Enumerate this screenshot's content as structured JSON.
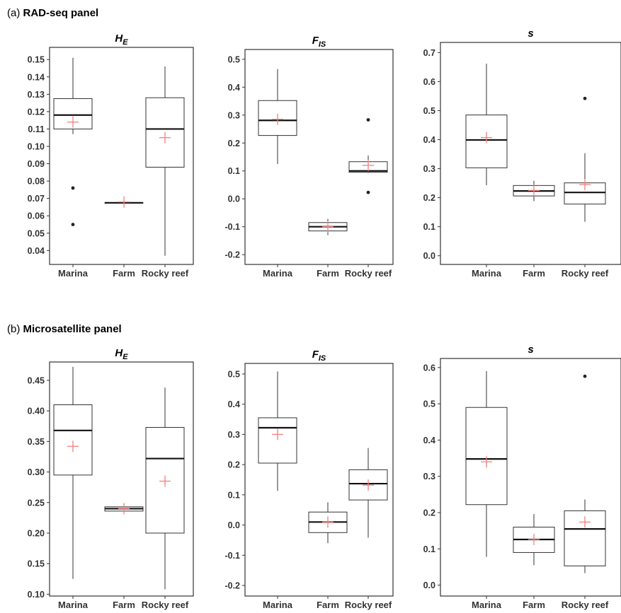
{
  "panels": [
    {
      "letter": "(a)",
      "title": "RAD-seq panel"
    },
    {
      "letter": "(b)",
      "title": "Microsatellite panel"
    }
  ],
  "colors": {
    "mean_marker": "#f08080",
    "box": "#333333",
    "median": "#111111",
    "outlier": "#222222"
  },
  "chart_data": [
    {
      "type": "boxplot",
      "panel": "a",
      "title_main": "H",
      "title_sub": "E",
      "categories": [
        "Marina",
        "Farm",
        "Rocky reef"
      ],
      "ylim": [
        0.032,
        0.157
      ],
      "yticks": [
        0.04,
        0.05,
        0.06,
        0.07,
        0.08,
        0.09,
        0.1,
        0.11,
        0.12,
        0.13,
        0.14,
        0.15
      ],
      "ytick_labels": [
        "0.04",
        "0.05",
        "0.06",
        "0.07",
        "0.08",
        "0.09",
        "0.10",
        "0.11",
        "0.12",
        "0.13",
        "0.14",
        "0.15"
      ],
      "boxes": [
        {
          "category": "Marina",
          "whisker_low": 0.107,
          "q1": 0.11,
          "median": 0.118,
          "q3": 0.1275,
          "whisker_high": 0.151,
          "mean": 0.114,
          "outliers": [
            0.076,
            0.055
          ]
        },
        {
          "category": "Farm",
          "whisker_low": 0.0675,
          "q1": 0.0675,
          "median": 0.0675,
          "q3": 0.0675,
          "whisker_high": 0.0675,
          "mean": 0.068,
          "outliers": []
        },
        {
          "category": "Rocky reef",
          "whisker_low": 0.037,
          "q1": 0.088,
          "median": 0.11,
          "q3": 0.128,
          "whisker_high": 0.146,
          "mean": 0.105,
          "outliers": []
        }
      ]
    },
    {
      "type": "boxplot",
      "panel": "a",
      "title_main": "F",
      "title_sub": "IS",
      "categories": [
        "Marina",
        "Farm",
        "Rocky reef"
      ],
      "ylim": [
        -0.235,
        0.535
      ],
      "yticks": [
        -0.2,
        -0.1,
        0.0,
        0.1,
        0.2,
        0.3,
        0.4,
        0.5
      ],
      "ytick_labels": [
        "-0.2",
        "-0.1",
        "0.0",
        "0.1",
        "0.2",
        "0.3",
        "0.4",
        "0.5"
      ],
      "boxes": [
        {
          "category": "Marina",
          "whisker_low": 0.125,
          "q1": 0.227,
          "median": 0.281,
          "q3": 0.352,
          "whisker_high": 0.465,
          "mean": 0.285,
          "outliers": []
        },
        {
          "category": "Farm",
          "whisker_low": -0.13,
          "q1": -0.115,
          "median": -0.1,
          "q3": -0.085,
          "whisker_high": -0.072,
          "mean": -0.1,
          "outliers": []
        },
        {
          "category": "Rocky reef",
          "whisker_low": 0.093,
          "q1": 0.095,
          "median": 0.1,
          "q3": 0.133,
          "whisker_high": 0.155,
          "mean": 0.12,
          "outliers": [
            0.283,
            0.023
          ]
        }
      ]
    },
    {
      "type": "boxplot",
      "panel": "a",
      "title_main": "s",
      "title_sub": "",
      "categories": [
        "Marina",
        "Farm",
        "Rocky reef"
      ],
      "ylim": [
        -0.03,
        0.735
      ],
      "yticks": [
        0.0,
        0.1,
        0.2,
        0.3,
        0.4,
        0.5,
        0.6,
        0.7
      ],
      "ytick_labels": [
        "0.0",
        "0.1",
        "0.2",
        "0.3",
        "0.4",
        "0.5",
        "0.6",
        "0.7"
      ],
      "boxes": [
        {
          "category": "Marina",
          "whisker_low": 0.243,
          "q1": 0.303,
          "median": 0.399,
          "q3": 0.485,
          "whisker_high": 0.662,
          "mean": 0.407,
          "outliers": []
        },
        {
          "category": "Farm",
          "whisker_low": 0.188,
          "q1": 0.206,
          "median": 0.223,
          "q3": 0.242,
          "whisker_high": 0.258,
          "mean": 0.225,
          "outliers": []
        },
        {
          "category": "Rocky reef",
          "whisker_low": 0.117,
          "q1": 0.178,
          "median": 0.218,
          "q3": 0.251,
          "whisker_high": 0.353,
          "mean": 0.245,
          "outliers": [
            0.542
          ]
        }
      ]
    },
    {
      "type": "boxplot",
      "panel": "b",
      "title_main": "H",
      "title_sub": "E",
      "categories": [
        "Marina",
        "Farm",
        "Rocky reef"
      ],
      "ylim": [
        0.097,
        0.48
      ],
      "yticks": [
        0.1,
        0.15,
        0.2,
        0.25,
        0.3,
        0.35,
        0.4,
        0.45
      ],
      "ytick_labels": [
        "0.10",
        "0.15",
        "0.20",
        "0.25",
        "0.30",
        "0.35",
        "0.40",
        "0.45"
      ],
      "boxes": [
        {
          "category": "Marina",
          "whisker_low": 0.125,
          "q1": 0.295,
          "median": 0.368,
          "q3": 0.41,
          "whisker_high": 0.472,
          "mean": 0.342,
          "outliers": []
        },
        {
          "category": "Farm",
          "whisker_low": 0.236,
          "q1": 0.236,
          "median": 0.24,
          "q3": 0.243,
          "whisker_high": 0.243,
          "mean": 0.24,
          "outliers": []
        },
        {
          "category": "Rocky reef",
          "whisker_low": 0.108,
          "q1": 0.2,
          "median": 0.322,
          "q3": 0.373,
          "whisker_high": 0.438,
          "mean": 0.285,
          "outliers": []
        }
      ]
    },
    {
      "type": "boxplot",
      "panel": "b",
      "title_main": "F",
      "title_sub": "IS",
      "categories": [
        "Marina",
        "Farm",
        "Rocky reef"
      ],
      "ylim": [
        -0.235,
        0.535
      ],
      "yticks": [
        -0.2,
        -0.1,
        0.0,
        0.1,
        0.2,
        0.3,
        0.4,
        0.5
      ],
      "ytick_labels": [
        "-0.2",
        "-0.1",
        "0.0",
        "0.1",
        "0.2",
        "0.3",
        "0.4",
        "0.5"
      ],
      "boxes": [
        {
          "category": "Marina",
          "whisker_low": 0.113,
          "q1": 0.205,
          "median": 0.322,
          "q3": 0.355,
          "whisker_high": 0.508,
          "mean": 0.3,
          "outliers": []
        },
        {
          "category": "Farm",
          "whisker_low": -0.06,
          "q1": -0.025,
          "median": 0.01,
          "q3": 0.043,
          "whisker_high": 0.075,
          "mean": 0.01,
          "outliers": []
        },
        {
          "category": "Rocky reef",
          "whisker_low": -0.042,
          "q1": 0.083,
          "median": 0.137,
          "q3": 0.183,
          "whisker_high": 0.255,
          "mean": 0.132,
          "outliers": []
        }
      ]
    },
    {
      "type": "boxplot",
      "panel": "b",
      "title_main": "s",
      "title_sub": "",
      "categories": [
        "Marina",
        "Farm",
        "Rocky reef"
      ],
      "ylim": [
        -0.03,
        0.625
      ],
      "yticks": [
        0.0,
        0.1,
        0.2,
        0.3,
        0.4,
        0.5,
        0.6
      ],
      "ytick_labels": [
        "0.0",
        "0.1",
        "0.2",
        "0.3",
        "0.4",
        "0.5",
        "0.6"
      ],
      "boxes": [
        {
          "category": "Marina",
          "whisker_low": 0.078,
          "q1": 0.222,
          "median": 0.348,
          "q3": 0.49,
          "whisker_high": 0.59,
          "mean": 0.34,
          "outliers": []
        },
        {
          "category": "Farm",
          "whisker_low": 0.055,
          "q1": 0.09,
          "median": 0.126,
          "q3": 0.16,
          "whisker_high": 0.196,
          "mean": 0.126,
          "outliers": []
        },
        {
          "category": "Rocky reef",
          "whisker_low": 0.033,
          "q1": 0.053,
          "median": 0.155,
          "q3": 0.205,
          "whisker_high": 0.236,
          "mean": 0.174,
          "outliers": [
            0.576
          ]
        }
      ]
    }
  ]
}
